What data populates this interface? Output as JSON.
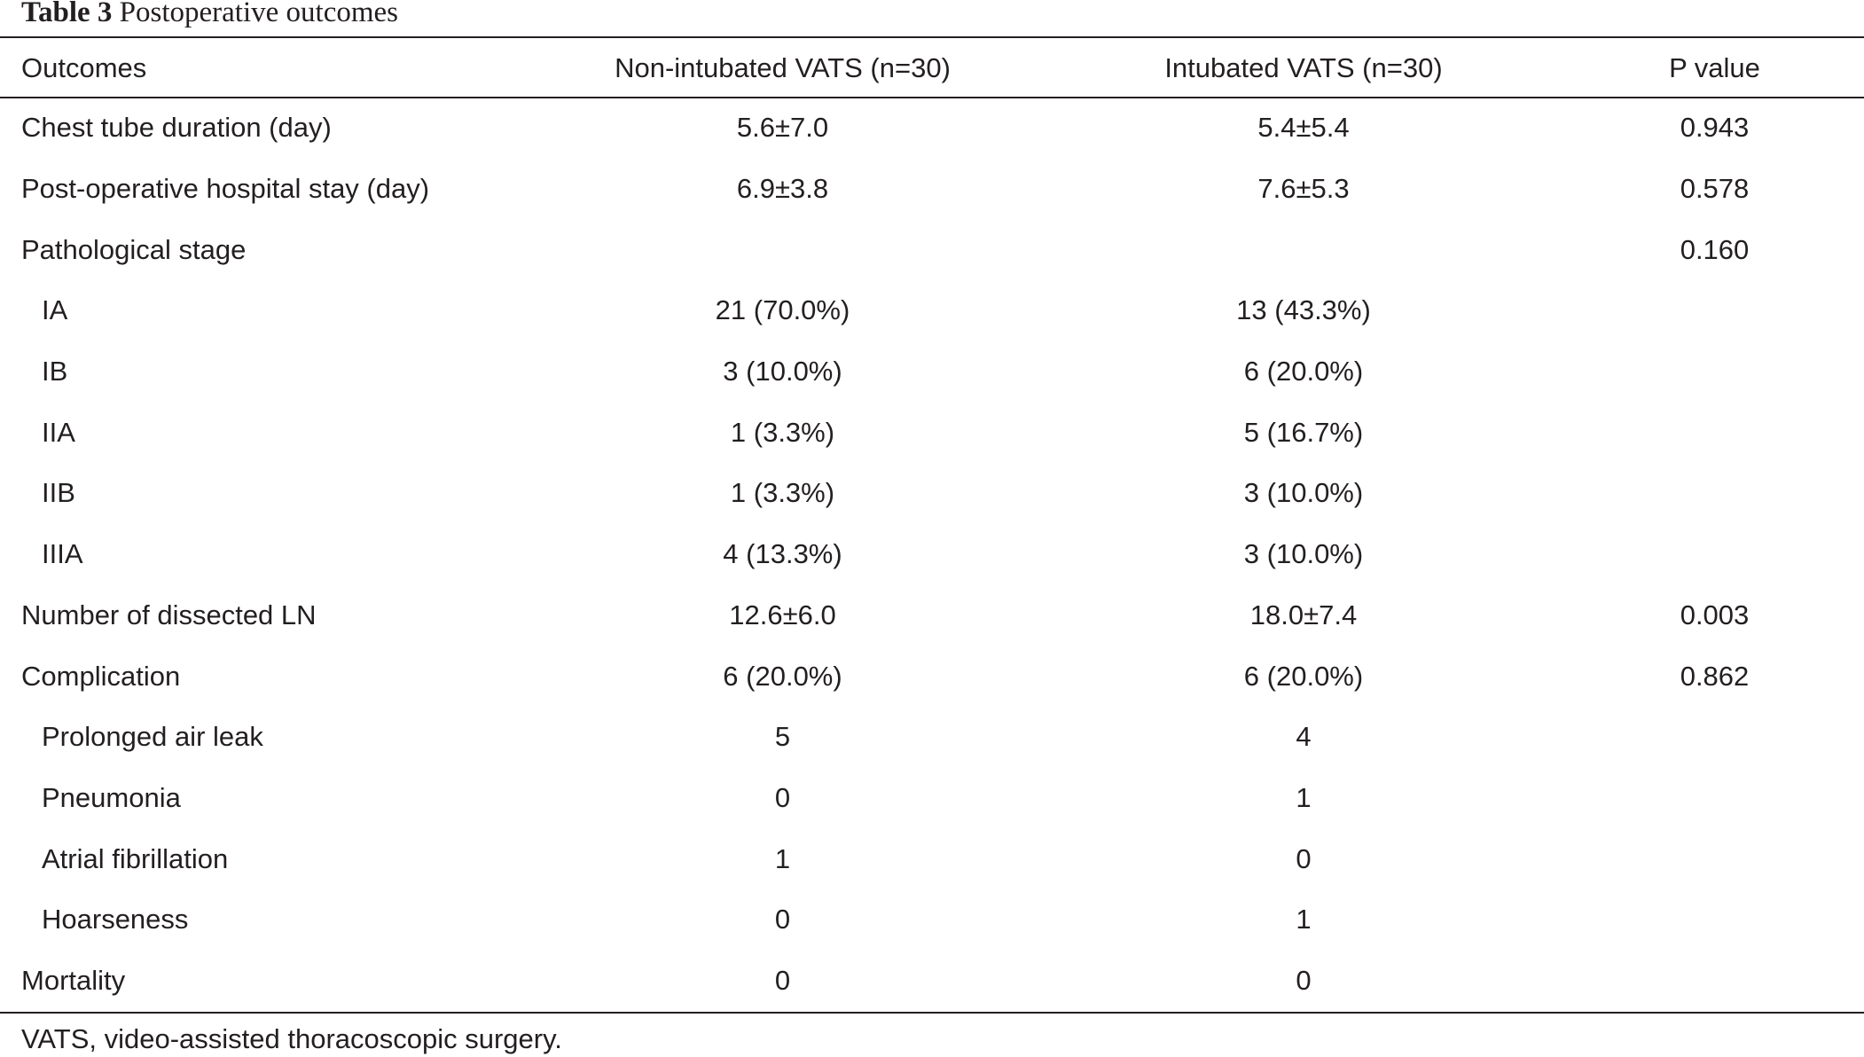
{
  "caption": {
    "label": "Table 3",
    "title": "Postoperative outcomes"
  },
  "columns": [
    "Outcomes",
    "Non-intubated VATS (n=30)",
    "Intubated VATS (n=30)",
    "P value"
  ],
  "rows": [
    {
      "label": "Chest tube duration (day)",
      "indent": false,
      "non_intubated": "5.6±7.0",
      "intubated": "5.4±5.4",
      "p_value": "0.943"
    },
    {
      "label": "Post-operative hospital stay (day)",
      "indent": false,
      "non_intubated": "6.9±3.8",
      "intubated": "7.6±5.3",
      "p_value": "0.578"
    },
    {
      "label": "Pathological stage",
      "indent": false,
      "non_intubated": "",
      "intubated": "",
      "p_value": "0.160"
    },
    {
      "label": "IA",
      "indent": true,
      "non_intubated": "21 (70.0%)",
      "intubated": "13 (43.3%)",
      "p_value": ""
    },
    {
      "label": "IB",
      "indent": true,
      "non_intubated": "3 (10.0%)",
      "intubated": "6 (20.0%)",
      "p_value": ""
    },
    {
      "label": "IIA",
      "indent": true,
      "non_intubated": "1 (3.3%)",
      "intubated": "5 (16.7%)",
      "p_value": ""
    },
    {
      "label": "IIB",
      "indent": true,
      "non_intubated": "1 (3.3%)",
      "intubated": "3 (10.0%)",
      "p_value": ""
    },
    {
      "label": "IIIA",
      "indent": true,
      "non_intubated": "4 (13.3%)",
      "intubated": "3 (10.0%)",
      "p_value": ""
    },
    {
      "label": "Number of dissected LN",
      "indent": false,
      "non_intubated": "12.6±6.0",
      "intubated": "18.0±7.4",
      "p_value": "0.003"
    },
    {
      "label": "Complication",
      "indent": false,
      "non_intubated": "6 (20.0%)",
      "intubated": "6 (20.0%)",
      "p_value": "0.862"
    },
    {
      "label": "Prolonged air leak",
      "indent": true,
      "non_intubated": "5",
      "intubated": "4",
      "p_value": ""
    },
    {
      "label": "Pneumonia",
      "indent": true,
      "non_intubated": "0",
      "intubated": "1",
      "p_value": ""
    },
    {
      "label": "Atrial fibrillation",
      "indent": true,
      "non_intubated": "1",
      "intubated": "0",
      "p_value": ""
    },
    {
      "label": "Hoarseness",
      "indent": true,
      "non_intubated": "0",
      "intubated": "1",
      "p_value": ""
    },
    {
      "label": "Mortality",
      "indent": false,
      "non_intubated": "0",
      "intubated": "0",
      "p_value": ""
    }
  ],
  "footnote": "VATS, video-assisted thoracoscopic surgery."
}
